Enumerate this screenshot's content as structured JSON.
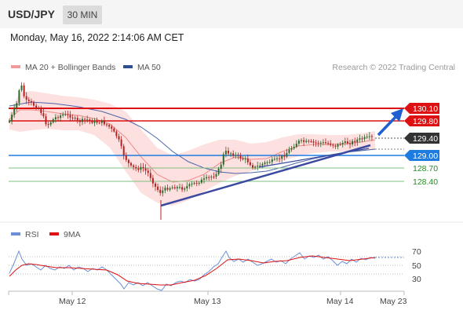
{
  "header": {
    "symbol": "USD/JPY",
    "timeframe": "30 MIN"
  },
  "datetime": "Monday, May 16, 2022 2:14:06 AM CET",
  "legend": {
    "ma_bollinger": "MA 20 + Bollinger Bands",
    "ma50": "MA 50",
    "rsi": "RSI",
    "rsi_ma": "9MA"
  },
  "copyright": "Research © 2022 Trading Central",
  "colors": {
    "resistance": "#dd1111",
    "pivot": "#1e7be0",
    "support": "#2a8a2a",
    "trend": "#3b4aa0",
    "candle_up": "#2d6a2d",
    "candle_down": "#b22222",
    "bollinger": "#fcdcdc",
    "ma20": "#f08a8a",
    "ma50": "#335599",
    "rsi": "#6a8fd8",
    "rsi_ma": "#dd1111"
  },
  "levels": {
    "resistance": [
      "130.10",
      "129.80"
    ],
    "last_price": "129.40",
    "pivot": "129.00",
    "support": [
      "128.70",
      "128.40"
    ]
  },
  "x_axis": [
    "May 12",
    "May 13",
    "May 14",
    "May 23"
  ],
  "rsi_axis": [
    "70",
    "50",
    "30"
  ]
}
